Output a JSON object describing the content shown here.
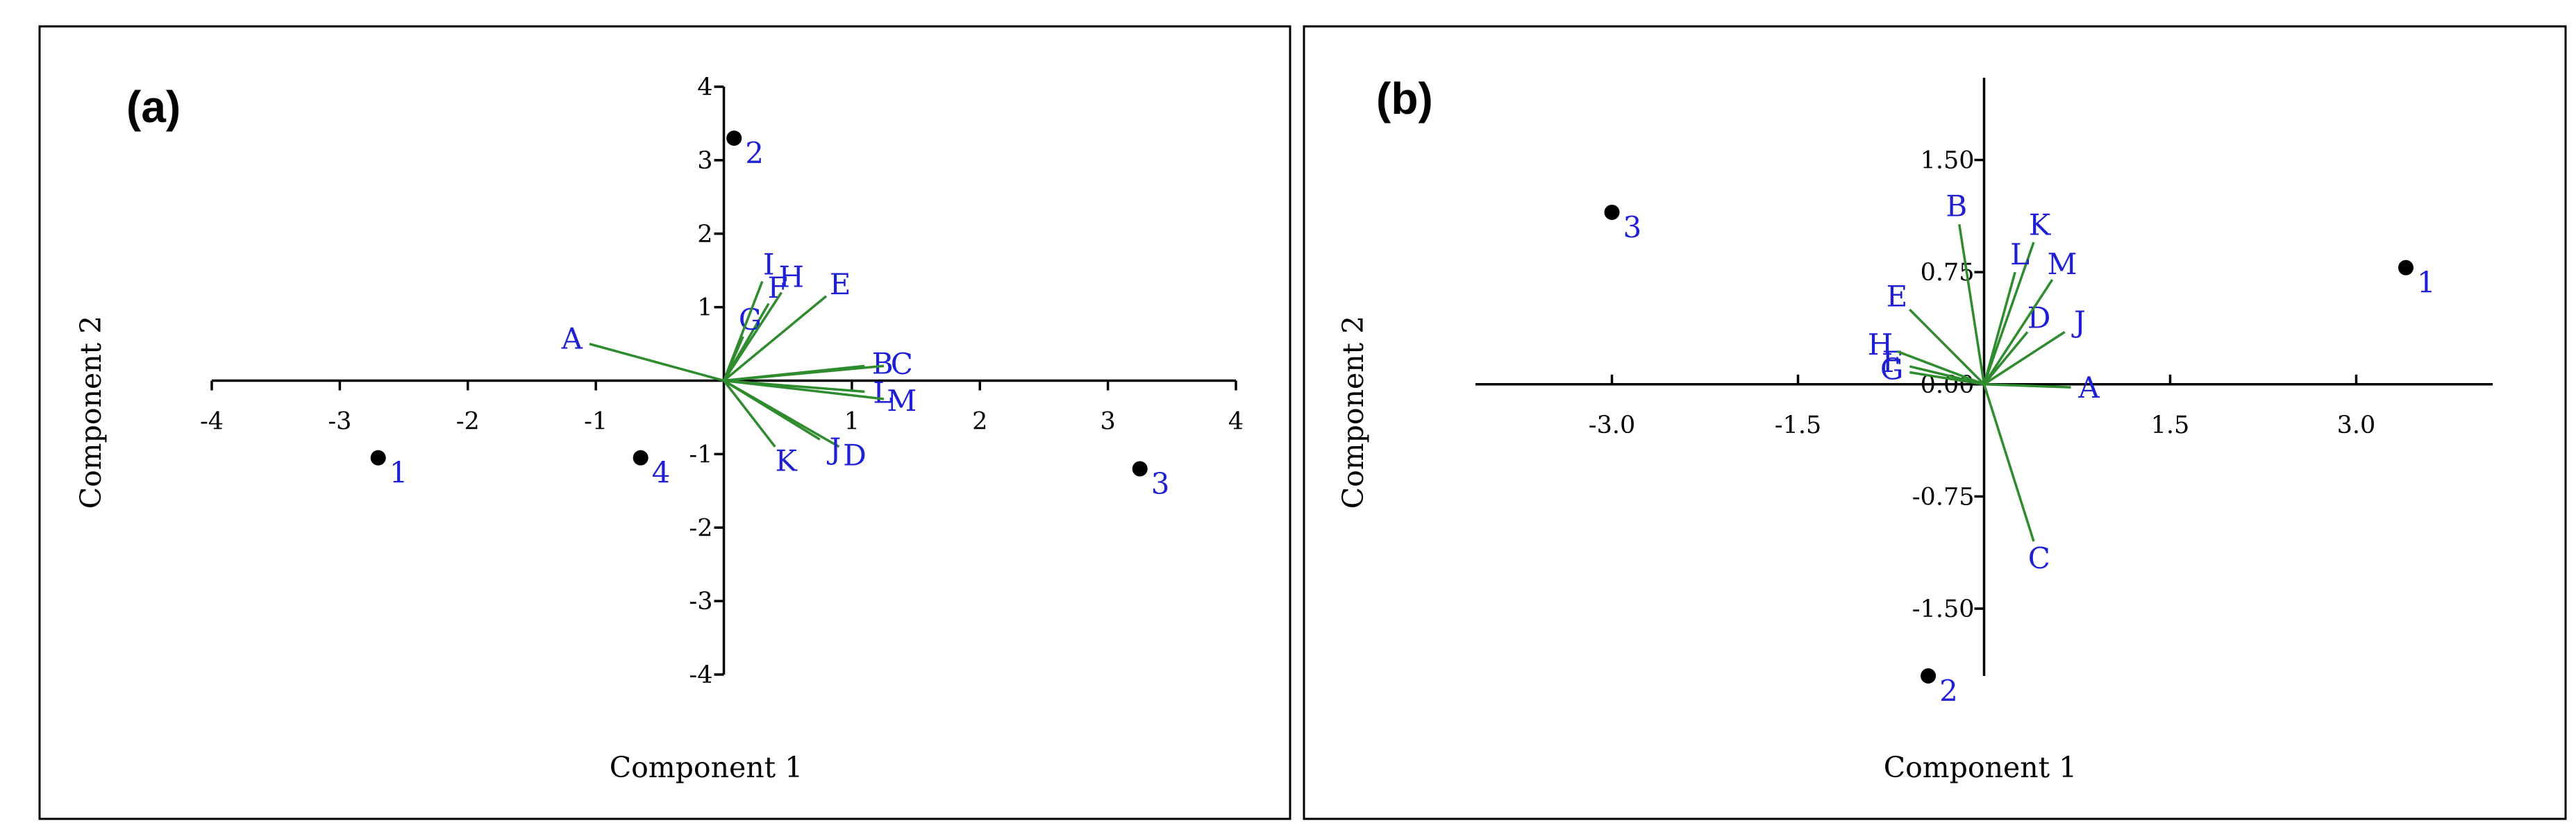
{
  "colors": {
    "vector": "#2e8b2e",
    "label": "#1f1fd6",
    "point": "#000000",
    "axis": "#000000"
  },
  "chart_data": [
    {
      "type": "scatter",
      "subtype": "biplot",
      "panel_label": "(a)",
      "xlabel": "Component 1",
      "ylabel": "Component 2",
      "xlim": [
        -4,
        4
      ],
      "ylim": [
        -4,
        4
      ],
      "xticks": [
        -4,
        -3,
        -2,
        -1,
        1,
        2,
        3,
        4
      ],
      "yticks": [
        -4,
        -3,
        -2,
        -1,
        1,
        2,
        3,
        4
      ],
      "xtick_labels": [
        "-4",
        "-3",
        "-2",
        "-1",
        "1",
        "2",
        "3",
        "4"
      ],
      "ytick_labels": [
        "-4",
        "-3",
        "-2",
        "-1",
        "1",
        "2",
        "3",
        "4"
      ],
      "grid": false,
      "points": [
        {
          "label": "1",
          "x": -2.7,
          "y": -1.05
        },
        {
          "label": "2",
          "x": 0.08,
          "y": 3.3
        },
        {
          "label": "3",
          "x": 3.25,
          "y": -1.2
        },
        {
          "label": "4",
          "x": -0.65,
          "y": -1.05
        }
      ],
      "vectors": [
        {
          "label": "A",
          "x": -1.05,
          "y": 0.5
        },
        {
          "label": "B",
          "x": 1.1,
          "y": 0.2
        },
        {
          "label": "C",
          "x": 1.25,
          "y": 0.2
        },
        {
          "label": "D",
          "x": 0.9,
          "y": -0.9
        },
        {
          "label": "E",
          "x": 0.8,
          "y": 1.15
        },
        {
          "label": "F",
          "x": 0.35,
          "y": 1.05
        },
        {
          "label": "G",
          "x": 0.15,
          "y": 0.6
        },
        {
          "label": "H",
          "x": 0.45,
          "y": 1.2
        },
        {
          "label": "I",
          "x": 0.3,
          "y": 1.35
        },
        {
          "label": "J",
          "x": 0.75,
          "y": -0.8
        },
        {
          "label": "K",
          "x": 0.4,
          "y": -0.9
        },
        {
          "label": "L",
          "x": 1.1,
          "y": -0.15
        },
        {
          "label": "M",
          "x": 1.25,
          "y": -0.25
        }
      ]
    },
    {
      "type": "scatter",
      "subtype": "biplot",
      "panel_label": "(b)",
      "xlabel": "Component 1",
      "ylabel": "Component 2",
      "xlim": [
        -4.1,
        4.1
      ],
      "ylim": [
        -1.95,
        2.05
      ],
      "xticks": [
        -3.0,
        -1.5,
        1.5,
        3.0
      ],
      "yticks": [
        1.5,
        0.75,
        0.0,
        -0.75,
        -1.5
      ],
      "xtick_labels": [
        "-3.0",
        "-1.5",
        "1.5",
        "3.0"
      ],
      "ytick_labels": [
        "1.50",
        "0.75",
        "0.00",
        "-0.75",
        "-1.50"
      ],
      "grid": false,
      "points": [
        {
          "label": "1",
          "x": 3.4,
          "y": 0.78
        },
        {
          "label": "2",
          "x": -0.45,
          "y": -1.95
        },
        {
          "label": "3",
          "x": -3.0,
          "y": 1.15
        }
      ],
      "vectors": [
        {
          "label": "A",
          "x": 0.7,
          "y": -0.02
        },
        {
          "label": "B",
          "x": -0.2,
          "y": 1.07
        },
        {
          "label": "C",
          "x": 0.4,
          "y": -1.05
        },
        {
          "label": "D",
          "x": 0.35,
          "y": 0.35
        },
        {
          "label": "E",
          "x": -0.6,
          "y": 0.5
        },
        {
          "label": "F",
          "x": -0.6,
          "y": 0.12
        },
        {
          "label": "G",
          "x": -0.6,
          "y": 0.08
        },
        {
          "label": "H",
          "x": -0.7,
          "y": 0.22
        },
        {
          "label": "J",
          "x": 0.65,
          "y": 0.35
        },
        {
          "label": "K",
          "x": 0.4,
          "y": 0.95
        },
        {
          "label": "L",
          "x": 0.25,
          "y": 0.75
        },
        {
          "label": "M",
          "x": 0.55,
          "y": 0.7
        }
      ]
    }
  ]
}
